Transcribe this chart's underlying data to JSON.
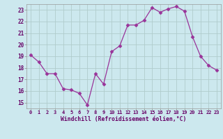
{
  "x": [
    0,
    1,
    2,
    3,
    4,
    5,
    6,
    7,
    8,
    9,
    10,
    11,
    12,
    13,
    14,
    15,
    16,
    17,
    18,
    19,
    20,
    21,
    22,
    23
  ],
  "y": [
    19.1,
    18.5,
    17.5,
    17.5,
    16.2,
    16.1,
    15.8,
    14.8,
    17.5,
    16.6,
    19.4,
    19.9,
    21.7,
    21.7,
    22.1,
    23.2,
    22.8,
    23.1,
    23.3,
    22.9,
    20.7,
    19.0,
    18.2,
    17.8
  ],
  "line_color": "#993399",
  "marker": "D",
  "marker_size": 2.5,
  "bg_color": "#cce8ee",
  "grid_color": "#b0cccc",
  "xlabel": "Windchill (Refroidissement éolien,°C)",
  "xlabel_color": "#660066",
  "tick_color": "#660066",
  "ylim": [
    14.5,
    23.5
  ],
  "xlim": [
    -0.5,
    23.5
  ],
  "yticks": [
    15,
    16,
    17,
    18,
    19,
    20,
    21,
    22,
    23
  ],
  "xticks": [
    0,
    1,
    2,
    3,
    4,
    5,
    6,
    7,
    8,
    9,
    10,
    11,
    12,
    13,
    14,
    15,
    16,
    17,
    18,
    19,
    20,
    21,
    22,
    23
  ]
}
